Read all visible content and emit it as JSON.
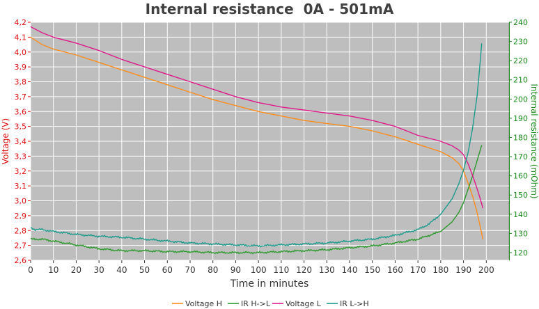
{
  "chart_data": {
    "type": "line",
    "title": "Internal resistance  0A - 501mA",
    "xlabel": "Time in minutes",
    "ylabel": "Voltage (V)",
    "y2label": "Internal resistance (mOhm)",
    "xlim": [
      0,
      210
    ],
    "ylim": [
      2.6,
      4.2
    ],
    "y2lim": [
      116,
      240
    ],
    "xticks": [
      "0",
      "10",
      "20",
      "30",
      "40",
      "50",
      "60",
      "70",
      "80",
      "90",
      "100",
      "110",
      "120",
      "130",
      "140",
      "150",
      "160",
      "170",
      "180",
      "190",
      "200"
    ],
    "yticks": [
      "2,6",
      "2,7",
      "2,8",
      "2,9",
      "3,0",
      "3,1",
      "3,2",
      "3,3",
      "3,4",
      "3,5",
      "3,6",
      "3,7",
      "3,8",
      "3,9",
      "4,0",
      "4,1",
      "4,2"
    ],
    "y2ticks": [
      "120",
      "130",
      "140",
      "150",
      "160",
      "170",
      "180",
      "190",
      "200",
      "210",
      "220",
      "230",
      "240"
    ],
    "grid": true,
    "legend_position": "bottom",
    "series": [
      {
        "name": "Voltage H",
        "axis": "left",
        "color": "#ff8c1a",
        "x": [
          0,
          5,
          10,
          20,
          30,
          40,
          50,
          60,
          70,
          80,
          90,
          100,
          110,
          120,
          130,
          140,
          150,
          160,
          170,
          180,
          185,
          188,
          190,
          192,
          194,
          196,
          197,
          198,
          198.5
        ],
        "y": [
          4.1,
          4.05,
          4.02,
          3.98,
          3.93,
          3.88,
          3.83,
          3.78,
          3.73,
          3.68,
          3.64,
          3.6,
          3.57,
          3.54,
          3.52,
          3.5,
          3.47,
          3.43,
          3.38,
          3.33,
          3.29,
          3.25,
          3.2,
          3.12,
          3.03,
          2.92,
          2.85,
          2.78,
          2.74
        ]
      },
      {
        "name": "IR H->L",
        "axis": "right",
        "color": "#2c9a2c",
        "x": [
          0,
          5,
          10,
          20,
          30,
          40,
          50,
          60,
          70,
          80,
          90,
          100,
          110,
          120,
          130,
          140,
          150,
          160,
          170,
          180,
          185,
          188,
          190,
          192,
          194,
          196,
          197,
          198
        ],
        "y": [
          127,
          127,
          126,
          124,
          122,
          121,
          121,
          120.5,
          120.5,
          120,
          120,
          120,
          120.5,
          121,
          121.5,
          122.5,
          123.5,
          125,
          127,
          131,
          136,
          141,
          146,
          153,
          160,
          168,
          172,
          176
        ]
      },
      {
        "name": "Voltage L",
        "axis": "left",
        "color": "#e0188c",
        "x": [
          0,
          5,
          10,
          20,
          30,
          40,
          50,
          60,
          70,
          80,
          90,
          100,
          110,
          120,
          130,
          140,
          150,
          160,
          170,
          180,
          185,
          188,
          190,
          192,
          194,
          196,
          197,
          198,
          198.5
        ],
        "y": [
          4.17,
          4.13,
          4.1,
          4.06,
          4.01,
          3.95,
          3.9,
          3.85,
          3.8,
          3.75,
          3.7,
          3.66,
          3.63,
          3.61,
          3.59,
          3.57,
          3.54,
          3.5,
          3.44,
          3.4,
          3.37,
          3.34,
          3.31,
          3.25,
          3.17,
          3.08,
          3.03,
          2.98,
          2.95
        ]
      },
      {
        "name": "IR L->H",
        "axis": "right",
        "color": "#1a9c8c",
        "x": [
          0,
          2,
          5,
          10,
          20,
          30,
          40,
          50,
          60,
          70,
          80,
          90,
          100,
          110,
          120,
          130,
          140,
          150,
          160,
          170,
          175,
          180,
          185,
          188,
          190,
          192,
          194,
          196,
          197,
          198
        ],
        "y": [
          133,
          132,
          132,
          131,
          129.5,
          128.5,
          128,
          127,
          126,
          125,
          124.5,
          124,
          123.5,
          124,
          124.5,
          125,
          126,
          127,
          129,
          132,
          135,
          140,
          148,
          156,
          163,
          172,
          185,
          202,
          215,
          229
        ]
      }
    ]
  }
}
